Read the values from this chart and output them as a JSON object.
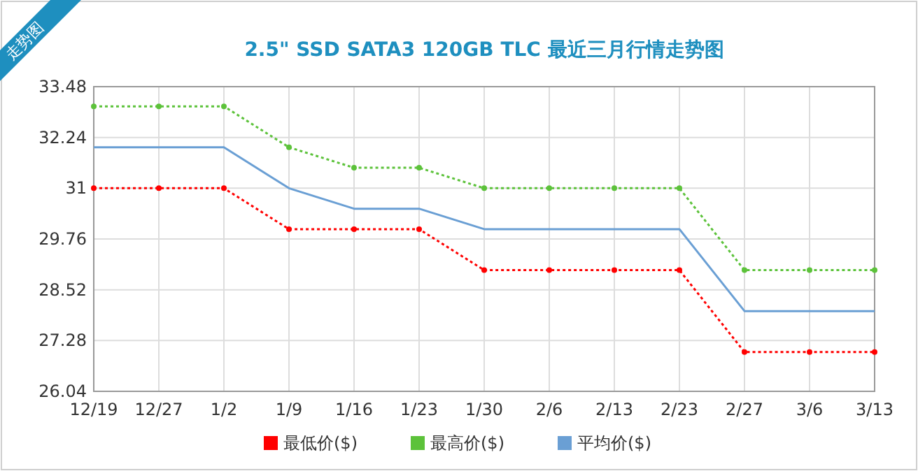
{
  "chart_data": {
    "type": "line",
    "title": "2.5\" SSD SATA3 120GB TLC 最近三月行情走势图",
    "annotations": [
      "走势图"
    ],
    "categories": [
      "12/19",
      "12/27",
      "1/2",
      "1/9",
      "1/16",
      "1/23",
      "1/30",
      "2/6",
      "2/13",
      "2/23",
      "2/27",
      "3/6",
      "3/13"
    ],
    "series": [
      {
        "name": "最低价($)",
        "color": "#ff0000",
        "line_style": "dotted",
        "marker": "circle",
        "values": [
          31,
          31,
          31,
          30,
          30,
          30,
          29,
          29,
          29,
          29,
          27,
          27,
          27
        ]
      },
      {
        "name": "最高价($)",
        "color": "#5cc23a",
        "line_style": "dotted",
        "marker": "circle",
        "values": [
          33,
          33,
          33,
          32,
          31.5,
          31.5,
          31,
          31,
          31,
          31,
          29,
          29,
          29
        ]
      },
      {
        "name": "平均价($)",
        "color": "#6a9fd4",
        "line_style": "solid",
        "marker": "none",
        "values": [
          32,
          32,
          32,
          31,
          30.5,
          30.5,
          30,
          30,
          30,
          30,
          28,
          28,
          28
        ]
      }
    ],
    "ylim": [
      26.04,
      33.48
    ],
    "yticks": [
      26.04,
      27.28,
      28.52,
      29.76,
      31,
      32.24,
      33.48
    ],
    "grid": true,
    "legend": "bottom"
  }
}
